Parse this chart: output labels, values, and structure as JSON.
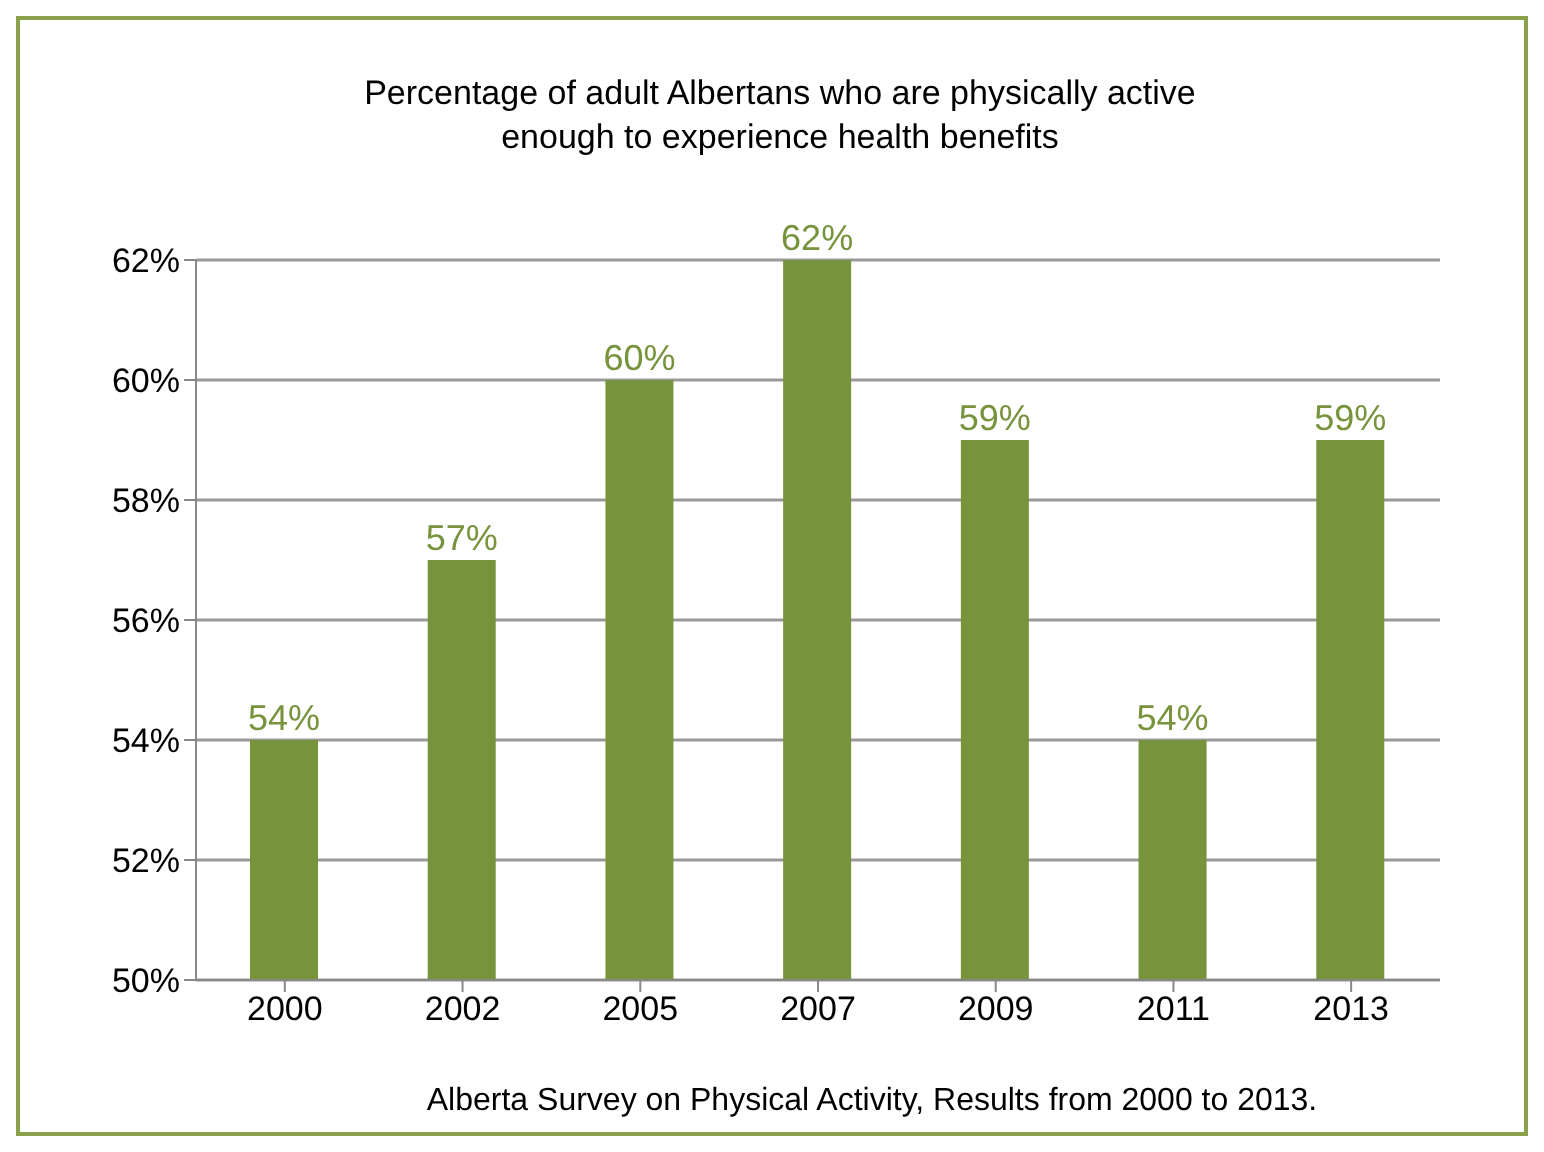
{
  "chart_data": {
    "type": "bar",
    "title": "Percentage of adult Albertans who are physically active enough to experience health benefits",
    "categories": [
      "2000",
      "2002",
      "2005",
      "2007",
      "2009",
      "2011",
      "2013"
    ],
    "values": [
      54,
      57,
      60,
      62,
      59,
      54,
      59
    ],
    "value_labels": [
      "54%",
      "57%",
      "60%",
      "62%",
      "59%",
      "54%",
      "59%"
    ],
    "color": "#77933c",
    "ylim": [
      50,
      62
    ],
    "yticks": [
      {
        "value": 50,
        "label": "50%"
      },
      {
        "value": 52,
        "label": "52%"
      },
      {
        "value": 54,
        "label": "54%"
      },
      {
        "value": 56,
        "label": "56%"
      },
      {
        "value": 58,
        "label": "58%"
      },
      {
        "value": 60,
        "label": "60%"
      },
      {
        "value": 62,
        "label": "62%"
      }
    ],
    "grid": "y",
    "annotations": [
      "Alberta Survey on Physical Activity, Results from 2000 to 2013."
    ]
  }
}
